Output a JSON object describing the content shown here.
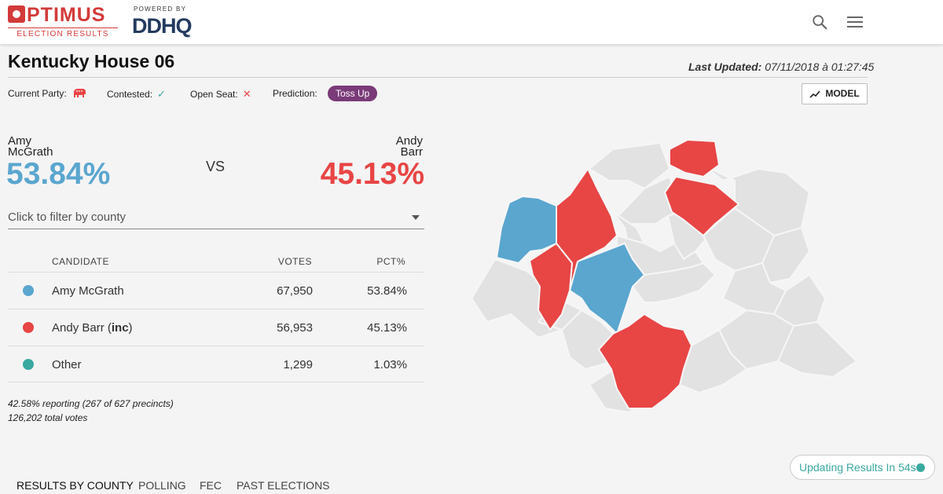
{
  "header": {
    "logo_text": "PTIMUS",
    "logo_subtitle": "ELECTION RESULTS",
    "powered_by": "POWERED BY",
    "partner_logo": "DDHQ",
    "search_icon": "search-icon",
    "menu_icon": "hamburger-menu-icon"
  },
  "race": {
    "title": "Kentucky House 06",
    "last_updated_label": "Last Updated:",
    "last_updated_value": "07/11/2018 à 01:27:45"
  },
  "meta": {
    "current_party_label": "Current Party:",
    "current_party_icon": "republican-elephant-icon",
    "contested_label": "Contested:",
    "contested_value": "✓",
    "open_seat_label": "Open Seat:",
    "open_seat_value": "✕",
    "prediction_label": "Prediction:",
    "prediction_value": "Toss Up",
    "model_button": "MODEL"
  },
  "matchup": {
    "left_first": "Amy",
    "left_last": "McGrath",
    "left_pct": "53.84%",
    "vs": "VS",
    "right_first": "Andy",
    "right_last": "Barr",
    "right_pct": "45.13%"
  },
  "filter": {
    "placeholder": "Click to filter by county"
  },
  "table": {
    "headers": {
      "candidate": "CANDIDATE",
      "votes": "VOTES",
      "pct": "PCT%"
    },
    "rows": [
      {
        "name": "Amy McGrath",
        "suffix": "",
        "votes": "67,950",
        "pct": "53.84%",
        "color": "#5aa6cf"
      },
      {
        "name": "Andy Barr (",
        "suffix": "inc",
        "suffix_close": ")",
        "votes": "56,953",
        "pct": "45.13%",
        "color": "#e84545"
      },
      {
        "name": "Other",
        "suffix": "",
        "votes": "1,299",
        "pct": "1.03%",
        "color": "#3aa9a0"
      }
    ]
  },
  "reporting": {
    "line1": "42.58% reporting (267 of 627 precincts)",
    "line2": "126,202 total votes"
  },
  "colors": {
    "democrat": "#5aa6cf",
    "republican": "#e84545",
    "other": "#3aa9a0",
    "no_result": "#e2e2e2",
    "toss_up": "#7a3b78"
  },
  "updating": {
    "text": "Updating Results In 54s"
  },
  "tabs": [
    {
      "label": "RESULTS BY COUNTY"
    },
    {
      "label": "POLLING"
    },
    {
      "label": "FEC"
    },
    {
      "label": "PAST ELECTIONS"
    }
  ]
}
